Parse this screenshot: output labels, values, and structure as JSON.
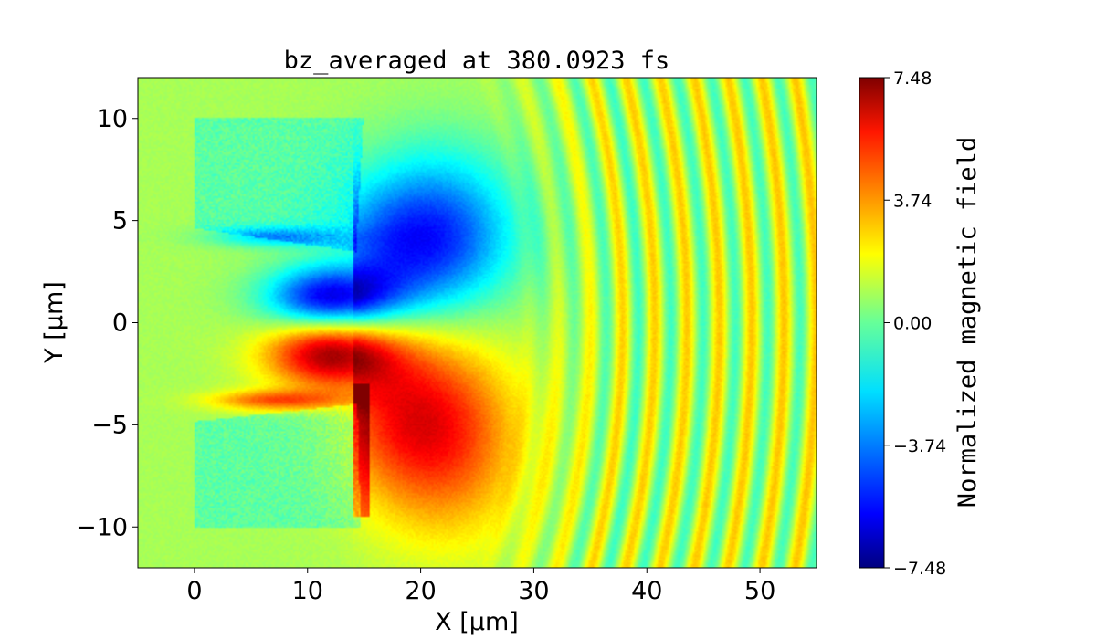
{
  "chart_data": {
    "type": "heatmap",
    "title": "bz_averaged at 380.0923 fs",
    "xlabel": "X [μm]",
    "ylabel": "Y [μm]",
    "xlim": [
      -5,
      55
    ],
    "ylim": [
      -12,
      12
    ],
    "x_ticks": [
      0,
      10,
      20,
      30,
      40,
      50
    ],
    "y_ticks": [
      -10,
      -5,
      0,
      5,
      10
    ],
    "colormap": "jet",
    "colorbar": {
      "label": "Normalized magnetic field",
      "range": [
        -7.48,
        7.48
      ],
      "ticks": [
        -7.48,
        -3.74,
        0.0,
        3.74,
        7.48
      ],
      "tick_labels": [
        "−7.48",
        "−3.74",
        "0.00",
        "3.74",
        "7.48"
      ]
    },
    "features": [
      {
        "name": "upper target block",
        "x": [
          0,
          14.5
        ],
        "y": [
          3.5,
          10
        ],
        "value": -0.6
      },
      {
        "name": "lower target block",
        "x": [
          0,
          14.5
        ],
        "y": [
          -10,
          -4
        ],
        "value": -0.6
      },
      {
        "name": "negative lobe (blue)",
        "center": [
          13,
          1.5
        ],
        "peak_value": -7.0
      },
      {
        "name": "positive lobe (red)",
        "center": [
          13,
          -1.5
        ],
        "peak_value": 6.8
      },
      {
        "name": "radiated wavefronts",
        "x_range": [
          28,
          55
        ],
        "amplitude": 2.0
      }
    ]
  }
}
